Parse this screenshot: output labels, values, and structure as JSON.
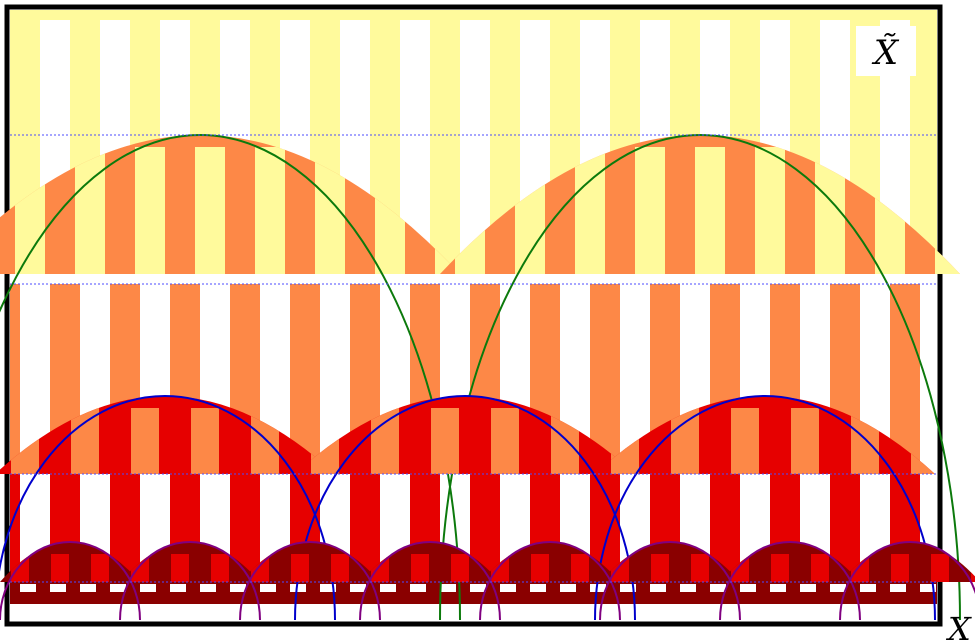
{
  "labels": {
    "cover_space": "X̃",
    "base_space": "X"
  },
  "colors": {
    "frame": "#000000",
    "background": "#ffffff",
    "level1": "#fffa9c",
    "level2": "#fd8847",
    "level3": "#e60000",
    "level4": "#8a0000",
    "arc_level2": "#0c7a0c",
    "arc_level3": "#0000cc",
    "arc_level4": "#800080",
    "dotted_line": "#4b4bff"
  }
}
